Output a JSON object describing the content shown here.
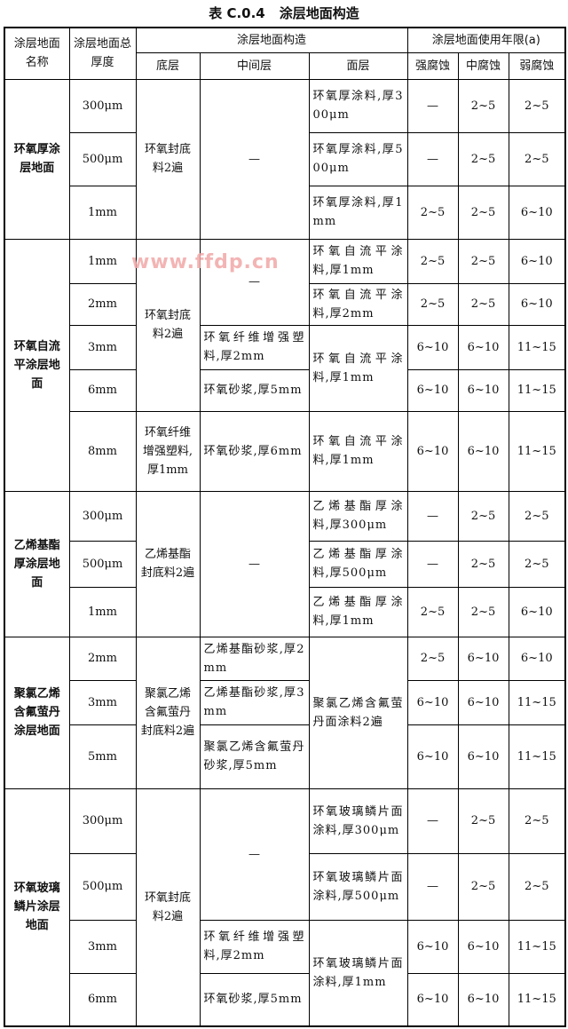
{
  "title": {
    "label": "表 C.0.4",
    "text": "涂层地面构造"
  },
  "watermark": "www.ffdp.cn",
  "headers": {
    "name": "涂层地面名称",
    "thickness": "涂层地面总厚度",
    "construction": "涂层地面构造",
    "base": "底层",
    "middle": "中间层",
    "surface": "面层",
    "life": "涂层地面使用年限(a)",
    "strong": "强腐蚀",
    "medium": "中腐蚀",
    "weak": "弱腐蚀"
  },
  "groups": [
    {
      "name": "环氧厚涂层地面",
      "thickness": [
        "300μm",
        "500μm",
        "1mm"
      ],
      "base": [
        "环氧封底料2遍"
      ],
      "middle": [
        "—"
      ],
      "surface": [
        "环氧厚涂料,厚300μm",
        "环氧厚涂料,厚500μm",
        "环氧厚涂料,厚1mm"
      ],
      "life": [
        [
          "—",
          "2~5",
          "2~5"
        ],
        [
          "—",
          "2~5",
          "2~5"
        ],
        [
          "2~5",
          "2~5",
          "6~10"
        ]
      ]
    },
    {
      "name": "环氧自流平涂层地面",
      "thickness": [
        "1mm",
        "2mm",
        "3mm",
        "6mm",
        "8mm"
      ],
      "base": [
        "环氧封底料2遍",
        "环氧纤维增强塑料,厚1mm"
      ],
      "middle": [
        "—",
        "环氧纤维增强塑料,厚2mm",
        "环氧砂浆,厚5mm",
        "环氧砂浆,厚6mm"
      ],
      "surface": [
        "环氧自流平涂料,厚1mm",
        "环氧自流平涂料,厚2mm",
        "环氧自流平涂料,厚1mm",
        "环氧自流平涂料,厚1mm"
      ],
      "life": [
        [
          "2~5",
          "2~5",
          "6~10"
        ],
        [
          "2~5",
          "2~5",
          "6~10"
        ],
        [
          "6~10",
          "6~10",
          "11~15"
        ],
        [
          "6~10",
          "6~10",
          "11~15"
        ],
        [
          "6~10",
          "6~10",
          "11~15"
        ]
      ]
    },
    {
      "name": "乙烯基酯厚涂层地面",
      "thickness": [
        "300μm",
        "500μm",
        "1mm"
      ],
      "base": [
        "乙烯基酯封底料2遍"
      ],
      "middle": [
        "—"
      ],
      "surface": [
        "乙烯基酯厚涂料,厚300μm",
        "乙烯基酯厚涂料,厚500μm",
        "乙烯基酯厚涂料,厚1mm"
      ],
      "life": [
        [
          "—",
          "2~5",
          "2~5"
        ],
        [
          "—",
          "2~5",
          "2~5"
        ],
        [
          "2~5",
          "2~5",
          "6~10"
        ]
      ]
    },
    {
      "name": "聚氯乙烯含氟萤丹涂层地面",
      "thickness": [
        "2mm",
        "3mm",
        "5mm"
      ],
      "base": [
        "聚氯乙烯含氟萤丹封底料2遍"
      ],
      "middle": [
        "乙烯基酯砂浆,厚2mm",
        "乙烯基酯砂浆,厚3mm",
        "聚氯乙烯含氟萤丹砂浆,厚5mm"
      ],
      "surface": [
        "聚氯乙烯含氟萤丹面涂料2遍"
      ],
      "life": [
        [
          "2~5",
          "6~10",
          "6~10"
        ],
        [
          "6~10",
          "6~10",
          "11~15"
        ],
        [
          "6~10",
          "6~10",
          "11~15"
        ]
      ]
    },
    {
      "name": "环氧玻璃鳞片涂层地面",
      "thickness": [
        "300μm",
        "500μm",
        "3mm",
        "6mm"
      ],
      "base": [
        "环氧封底料2遍"
      ],
      "middle": [
        "—",
        "环氧纤维增强塑料,厚2mm",
        "环氧砂浆,厚5mm"
      ],
      "surface": [
        "环氧玻璃鳞片面涂料,厚300μm",
        "环氧玻璃鳞片面涂料,厚500μm",
        "环氧玻璃鳞片面涂料,厚1mm"
      ],
      "life": [
        [
          "—",
          "2~5",
          "2~5"
        ],
        [
          "—",
          "2~5",
          "2~5"
        ],
        [
          "6~10",
          "6~10",
          "11~15"
        ],
        [
          "6~10",
          "6~10",
          "11~15"
        ]
      ]
    }
  ]
}
